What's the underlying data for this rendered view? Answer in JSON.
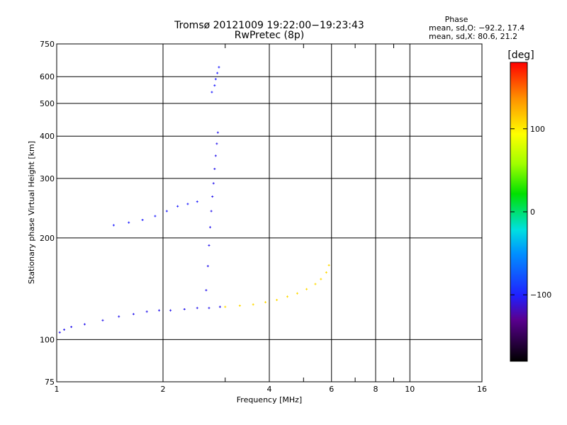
{
  "chart_data": {
    "type": "scatter",
    "title": "Tromsø 20121009 19:22:00−19:23:43",
    "subtitle": "RwPretec (8p)",
    "xlabel": "Frequency [MHz]",
    "ylabel": "Stationary phase Virtual Height [km]",
    "x_scale": "log",
    "y_scale": "log",
    "xlim": [
      1,
      16
    ],
    "ylim": [
      75,
      750
    ],
    "x_ticks": [
      1,
      2,
      4,
      6,
      8,
      10,
      16
    ],
    "x_tick_labels": [
      "1",
      "2",
      "4",
      "6",
      "8",
      "10",
      "16"
    ],
    "x_minor_ticks": [
      3,
      5,
      7,
      9
    ],
    "y_ticks": [
      75,
      100,
      200,
      300,
      400,
      500,
      600,
      750
    ],
    "y_tick_labels": [
      "75",
      "100",
      "200",
      "300",
      "400",
      "500",
      "600",
      "750"
    ],
    "grid": true,
    "stats": {
      "header": "Phase",
      "line_o": "mean, sd,O:  −92.2, 17.4",
      "line_x": "mean, sd,X:  80.6, 21.2"
    },
    "colorbar": {
      "label": "[deg]",
      "range": [
        -180,
        180
      ],
      "ticks": [
        -100,
        0,
        100
      ],
      "tick_labels": [
        "−100",
        "0",
        "100"
      ]
    },
    "traces": [
      {
        "phase": -105,
        "points": [
          [
            1.02,
            105
          ],
          [
            1.05,
            107
          ],
          [
            1.1,
            109
          ],
          [
            1.2,
            111
          ],
          [
            1.35,
            114
          ],
          [
            1.5,
            117
          ],
          [
            1.65,
            119
          ],
          [
            1.8,
            121
          ],
          [
            1.95,
            122
          ],
          [
            2.1,
            122
          ],
          [
            2.3,
            123
          ],
          [
            2.5,
            124
          ],
          [
            2.7,
            124
          ],
          [
            2.9,
            125
          ]
        ]
      },
      {
        "phase": 110,
        "points": [
          [
            3.0,
            125
          ],
          [
            3.3,
            126
          ],
          [
            3.6,
            127
          ],
          [
            3.9,
            129
          ],
          [
            4.2,
            131
          ],
          [
            4.5,
            134
          ],
          [
            4.8,
            137
          ],
          [
            5.1,
            141
          ],
          [
            5.4,
            146
          ],
          [
            5.6,
            151
          ],
          [
            5.8,
            158
          ],
          [
            5.9,
            166
          ]
        ]
      },
      {
        "phase": -100,
        "points": [
          [
            1.45,
            218
          ],
          [
            1.6,
            222
          ],
          [
            1.75,
            226
          ],
          [
            1.9,
            232
          ],
          [
            2.05,
            240
          ],
          [
            2.2,
            248
          ],
          [
            2.35,
            252
          ],
          [
            2.5,
            256
          ]
        ]
      },
      {
        "phase": -105,
        "points": [
          [
            2.65,
            140
          ],
          [
            2.68,
            165
          ],
          [
            2.7,
            190
          ],
          [
            2.72,
            215
          ],
          [
            2.74,
            240
          ],
          [
            2.76,
            265
          ],
          [
            2.78,
            290
          ],
          [
            2.8,
            320
          ],
          [
            2.82,
            350
          ],
          [
            2.84,
            380
          ],
          [
            2.86,
            410
          ]
        ]
      },
      {
        "phase": -100,
        "points": [
          [
            2.75,
            540
          ],
          [
            2.8,
            565
          ],
          [
            2.82,
            590
          ],
          [
            2.85,
            615
          ],
          [
            2.88,
            640
          ]
        ]
      }
    ]
  }
}
